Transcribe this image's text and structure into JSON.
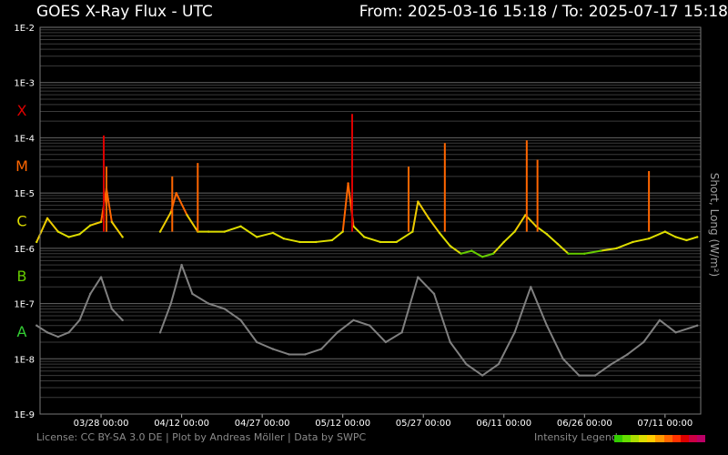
{
  "header": {
    "title": "GOES X-Ray Flux - UTC",
    "range": "From: 2025-03-16 15:18  /  To: 2025-07-17 15:18"
  },
  "footer": {
    "license": "License: CC BY-SA 3.0 DE | Plot by Andreas Möller | Data by SWPC",
    "legend_label": "Intensity Legend",
    "legend_colors": [
      "#33cc00",
      "#66dd00",
      "#aadd00",
      "#dddd00",
      "#ffcc00",
      "#ff9900",
      "#ff6600",
      "#ff3300",
      "#dd0000",
      "#cc0044",
      "#bb0066"
    ]
  },
  "side_label": "Short, Long (W/m²)",
  "colors": {
    "A": "#33cc33",
    "B": "#66cc00",
    "C": "#dddd00",
    "M": "#ff6600",
    "X": "#dd0000",
    "short_channel": "#808080",
    "grid": "#555555"
  },
  "chart_data": {
    "type": "line",
    "title": "GOES X-Ray Flux - UTC",
    "ylabel": "Short, Long (W/m²)",
    "yscale": "log",
    "ylim": [
      1e-09,
      0.01
    ],
    "y_ticks": [
      "1E-2",
      "1E-3",
      "1E-4",
      "1E-5",
      "1E-6",
      "1E-7",
      "1E-8",
      "1E-9"
    ],
    "y_tick_values": [
      0.01,
      0.001,
      0.0001,
      1e-05,
      1e-06,
      1e-07,
      1e-08,
      1e-09
    ],
    "flare_classes": [
      {
        "label": "X",
        "value": 0.000316
      },
      {
        "label": "M",
        "value": 3.16e-05
      },
      {
        "label": "C",
        "value": 3.16e-06
      },
      {
        "label": "B",
        "value": 3.16e-07
      },
      {
        "label": "A",
        "value": 3.16e-08
      }
    ],
    "xlim": [
      "2025-03-16 15:18",
      "2025-07-17 15:18"
    ],
    "x_ticks": [
      "03/28 00:00",
      "04/12 00:00",
      "04/27 00:00",
      "05/12 00:00",
      "05/27 00:00",
      "06/11 00:00",
      "06/26 00:00",
      "07/11 00:00"
    ],
    "x_tick_dates": [
      "2025-03-28",
      "2025-04-12",
      "2025-04-27",
      "2025-05-12",
      "2025-05-27",
      "2025-06-11",
      "2025-06-26",
      "2025-07-11"
    ],
    "grid": true,
    "series": [
      {
        "name": "Long",
        "x": [
          "2025-03-16",
          "2025-03-18",
          "2025-03-20",
          "2025-03-22",
          "2025-03-24",
          "2025-03-26",
          "2025-03-28",
          "2025-03-29",
          "2025-03-30",
          "2025-04-01",
          "2025-04-03",
          "2025-04-05",
          "2025-04-08",
          "2025-04-10",
          "2025-04-11",
          "2025-04-13",
          "2025-04-15",
          "2025-04-17",
          "2025-04-20",
          "2025-04-23",
          "2025-04-26",
          "2025-04-29",
          "2025-05-01",
          "2025-05-04",
          "2025-05-07",
          "2025-05-10",
          "2025-05-12",
          "2025-05-13",
          "2025-05-14",
          "2025-05-16",
          "2025-05-19",
          "2025-05-22",
          "2025-05-25",
          "2025-05-26",
          "2025-05-28",
          "2025-05-30",
          "2025-06-01",
          "2025-06-03",
          "2025-06-05",
          "2025-06-07",
          "2025-06-09",
          "2025-06-11",
          "2025-06-13",
          "2025-06-15",
          "2025-06-17",
          "2025-06-19",
          "2025-06-21",
          "2025-06-23",
          "2025-06-26",
          "2025-06-29",
          "2025-07-02",
          "2025-07-05",
          "2025-07-08",
          "2025-07-11",
          "2025-07-13",
          "2025-07-15",
          "2025-07-17"
        ],
        "y": [
          1.3e-06,
          3.5e-06,
          2e-06,
          1.6e-06,
          1.8e-06,
          2.6e-06,
          3e-06,
          1.2e-05,
          3e-06,
          1.6e-06,
          null,
          null,
          2e-06,
          4.5e-06,
          1e-05,
          4e-06,
          2e-06,
          2e-06,
          2e-06,
          2.5e-06,
          1.6e-06,
          1.9e-06,
          1.5e-06,
          1.3e-06,
          1.3e-06,
          1.4e-06,
          2e-06,
          1.5e-05,
          2.5e-06,
          1.6e-06,
          1.3e-06,
          1.3e-06,
          2e-06,
          7e-06,
          3.5e-06,
          1.9e-06,
          1.1e-06,
          8e-07,
          9e-07,
          7e-07,
          8e-07,
          1.3e-06,
          2e-06,
          4e-06,
          2.5e-06,
          1.8e-06,
          1.2e-06,
          8e-07,
          8e-07,
          9e-07,
          1e-06,
          1.3e-06,
          1.5e-06,
          2e-06,
          1.6e-06,
          1.4e-06,
          1.6e-06
        ]
      },
      {
        "name": "Short",
        "x": [
          "2025-03-16",
          "2025-03-18",
          "2025-03-20",
          "2025-03-22",
          "2025-03-24",
          "2025-03-26",
          "2025-03-28",
          "2025-03-30",
          "2025-04-01",
          "2025-04-03",
          "2025-04-06",
          "2025-04-08",
          "2025-04-10",
          "2025-04-12",
          "2025-04-14",
          "2025-04-17",
          "2025-04-20",
          "2025-04-23",
          "2025-04-26",
          "2025-04-29",
          "2025-05-02",
          "2025-05-05",
          "2025-05-08",
          "2025-05-11",
          "2025-05-14",
          "2025-05-17",
          "2025-05-20",
          "2025-05-23",
          "2025-05-26",
          "2025-05-29",
          "2025-06-01",
          "2025-06-04",
          "2025-06-07",
          "2025-06-10",
          "2025-06-13",
          "2025-06-16",
          "2025-06-19",
          "2025-06-22",
          "2025-06-25",
          "2025-06-28",
          "2025-07-01",
          "2025-07-04",
          "2025-07-07",
          "2025-07-10",
          "2025-07-13",
          "2025-07-17"
        ],
        "y": [
          4e-08,
          3e-08,
          2.5e-08,
          3e-08,
          5e-08,
          1.5e-07,
          3e-07,
          8e-08,
          5e-08,
          null,
          null,
          3e-08,
          1e-07,
          5e-07,
          1.5e-07,
          1e-07,
          8e-08,
          5e-08,
          2e-08,
          1.5e-08,
          1.2e-08,
          1.2e-08,
          1.5e-08,
          3e-08,
          5e-08,
          4e-08,
          2e-08,
          3e-08,
          3e-07,
          1.5e-07,
          2e-08,
          8e-09,
          5e-09,
          8e-09,
          3e-08,
          2e-07,
          4e-08,
          1e-08,
          5e-09,
          5e-09,
          8e-09,
          1.2e-08,
          2e-08,
          5e-08,
          3e-08,
          4e-08
        ]
      }
    ],
    "peaks": [
      {
        "x": "2025-03-28 12:00",
        "y": 0.00011
      },
      {
        "x": "2025-03-29 00:00",
        "y": 3e-05
      },
      {
        "x": "2025-04-10 06:00",
        "y": 2e-05
      },
      {
        "x": "2025-04-15 00:00",
        "y": 3.5e-05
      },
      {
        "x": "2025-05-13 18:00",
        "y": 0.00027
      },
      {
        "x": "2025-05-24 06:00",
        "y": 3e-05
      },
      {
        "x": "2025-05-31 00:00",
        "y": 8e-05
      },
      {
        "x": "2025-06-15 06:00",
        "y": 9e-05
      },
      {
        "x": "2025-06-17 06:00",
        "y": 4e-05
      },
      {
        "x": "2025-07-08 00:00",
        "y": 2.5e-05
      }
    ]
  }
}
